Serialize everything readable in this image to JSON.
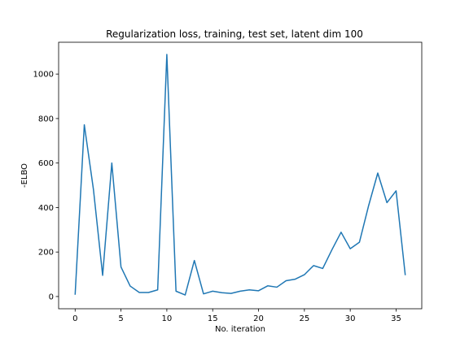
{
  "chart_data": {
    "type": "line",
    "title": "Regularization loss, training, test set, latent dim 100",
    "xlabel": "No. iteration",
    "ylabel": "-ELBO",
    "xlim": [
      -1.8,
      37.8
    ],
    "ylim": [
      -55,
      1143
    ],
    "xticks": [
      0,
      5,
      10,
      15,
      20,
      25,
      30,
      35
    ],
    "yticks": [
      0,
      200,
      400,
      600,
      800,
      1000
    ],
    "grid": false,
    "legend": "none",
    "series": [
      {
        "color": "#1f77b4",
        "x": [
          0,
          1,
          2,
          3,
          4,
          5,
          6,
          7,
          8,
          9,
          10,
          11,
          12,
          13,
          14,
          15,
          16,
          17,
          18,
          19,
          20,
          21,
          22,
          23,
          24,
          25,
          26,
          27,
          28,
          29,
          30,
          31,
          32,
          33,
          34,
          35,
          36
        ],
        "values": [
          8,
          772,
          480,
          95,
          600,
          133,
          47,
          18,
          18,
          30,
          1088,
          24,
          7,
          162,
          12,
          24,
          17,
          14,
          24,
          30,
          26,
          48,
          42,
          71,
          78,
          98,
          139,
          126,
          210,
          289,
          215,
          244,
          408,
          555,
          422,
          475,
          96
        ]
      }
    ]
  }
}
